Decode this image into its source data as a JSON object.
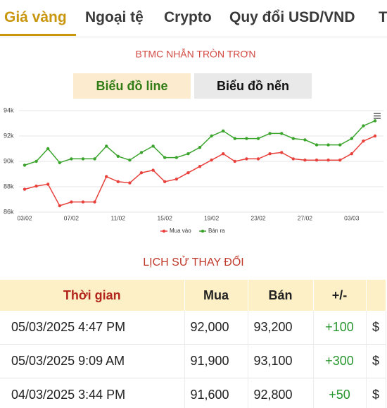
{
  "tabs": [
    "Giá vàng",
    "Ngoại tệ",
    "Crypto",
    "Quy đổi USD/VND",
    "T"
  ],
  "chart_buttons": [
    "Biểu đồ line",
    "Biểu đồ nến"
  ],
  "chart_data": {
    "type": "line",
    "title": "BTMC NHẪN TRÒN TRƠN",
    "categories": [
      "03/02",
      null,
      null,
      null,
      "07/02",
      null,
      null,
      null,
      "11/02",
      null,
      null,
      null,
      "15/02",
      null,
      null,
      null,
      "19/02",
      null,
      null,
      null,
      "23/02",
      null,
      null,
      null,
      "27/02",
      null,
      null,
      null,
      "03/03",
      null,
      null
    ],
    "series": [
      {
        "name": "Mua vào",
        "color": "#e8413c",
        "values": [
          87800,
          88050,
          88200,
          86500,
          86800,
          86800,
          86800,
          88800,
          88400,
          88300,
          89100,
          89300,
          88400,
          88600,
          89100,
          89600,
          90100,
          90600,
          90000,
          90200,
          90200,
          90600,
          90700,
          90200,
          90100,
          90100,
          90100,
          90100,
          90600,
          91600,
          92000
        ]
      },
      {
        "name": "Bán ra",
        "color": "#3aa42c",
        "values": [
          89700,
          90000,
          91000,
          89900,
          90200,
          90200,
          90200,
          91200,
          90400,
          90100,
          90700,
          91200,
          90300,
          90300,
          90600,
          91100,
          92000,
          92400,
          91800,
          91800,
          91800,
          92200,
          92200,
          91800,
          91700,
          91300,
          91300,
          91300,
          91800,
          92800,
          93200
        ]
      }
    ],
    "ylim": [
      86000,
      94000
    ],
    "yticks": [
      {
        "value": 86000,
        "label": "86k"
      },
      {
        "value": 88000,
        "label": "88k"
      },
      {
        "value": 90000,
        "label": "90k"
      },
      {
        "value": 92000,
        "label": "92k"
      },
      {
        "value": 94000,
        "label": "94k"
      }
    ],
    "grid": true,
    "legend": "bottom"
  },
  "history": {
    "title": "LỊCH SỬ THAY ĐỔI",
    "header": [
      "Thời gian",
      "Mua",
      "Bán",
      "+/-"
    ],
    "rows": [
      [
        "05/03/2025 4:47 PM",
        "92,000",
        "93,200",
        "+100",
        "$"
      ],
      [
        "05/03/2025 9:09 AM",
        "91,900",
        "93,100",
        "+300",
        "$"
      ],
      [
        "04/03/2025 3:44 PM",
        "91,600",
        "92,800",
        "+50",
        "$"
      ]
    ]
  }
}
